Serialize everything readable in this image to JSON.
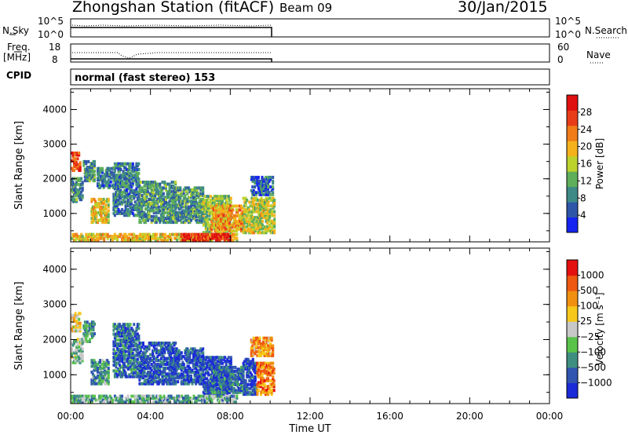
{
  "header": {
    "station": "Zhongshan Station (fitACF)",
    "beam": "Beam 09",
    "date": "30/Jan/2015"
  },
  "sky_panel": {
    "left_label": "N.Sky",
    "right_label": "N.Search",
    "left_ticks": [
      "10^5",
      "10^0"
    ],
    "right_ticks": [
      "10^5",
      "10^0"
    ]
  },
  "freq_panel": {
    "left_label_1": "Freq.",
    "left_label_2": "[MHz]",
    "right_label": "Nave",
    "left_ticks": [
      "18",
      "8"
    ],
    "right_ticks": [
      "60",
      "0"
    ]
  },
  "cpid": {
    "label": "CPID",
    "value": "normal (fast stereo) 153"
  },
  "chart_data": [
    {
      "type": "heatmap",
      "title": "",
      "ylabel": "Slant Range [km]",
      "yticks": [
        "4000",
        "3000",
        "2000",
        "1000"
      ],
      "ylim": [
        180,
        4600
      ],
      "xlim": [
        0,
        24
      ],
      "colorbar": {
        "label": "Power [dB]",
        "ticks": [
          "28",
          "24",
          "20",
          "16",
          "12",
          "8",
          "4"
        ],
        "range": [
          0,
          30
        ],
        "colors": [
          "#1524f0",
          "#2e56a8",
          "#3e8a86",
          "#5fae5a",
          "#bcd22d",
          "#f4b21a",
          "#f07d18",
          "#e83c18",
          "#df1010"
        ]
      },
      "clusters": [
        {
          "t0": 0.0,
          "t1": 0.45,
          "r0": 2200,
          "r1": 2700,
          "level": 0.8
        },
        {
          "t0": 0.0,
          "t1": 0.6,
          "r0": 1300,
          "r1": 2000,
          "level": 0.3
        },
        {
          "t0": 0.6,
          "t1": 1.2,
          "r0": 1900,
          "r1": 2500,
          "level": 0.3
        },
        {
          "t0": 1.0,
          "t1": 1.9,
          "r0": 700,
          "r1": 1400,
          "level": 0.55
        },
        {
          "t0": 1.3,
          "t1": 2.1,
          "r0": 1700,
          "r1": 2300,
          "level": 0.25
        },
        {
          "t0": 2.1,
          "t1": 3.4,
          "r0": 900,
          "r1": 2400,
          "level": 0.25
        },
        {
          "t0": 3.4,
          "t1": 5.2,
          "r0": 700,
          "r1": 1900,
          "level": 0.3
        },
        {
          "t0": 5.2,
          "t1": 6.6,
          "r0": 700,
          "r1": 1700,
          "level": 0.3
        },
        {
          "t0": 6.6,
          "t1": 8.0,
          "r0": 400,
          "r1": 1500,
          "level": 0.45
        },
        {
          "t0": 7.0,
          "t1": 8.6,
          "r0": 450,
          "r1": 1200,
          "level": 0.65
        },
        {
          "t0": 8.6,
          "t1": 10.2,
          "r0": 400,
          "r1": 1400,
          "level": 0.5
        },
        {
          "t0": 9.0,
          "t1": 10.1,
          "r0": 1500,
          "r1": 2000,
          "level": 0.2
        },
        {
          "t0": 0.0,
          "t1": 8.3,
          "r0": 180,
          "r1": 400,
          "level": 0.6
        },
        {
          "t0": 5.5,
          "t1": 8.0,
          "r0": 180,
          "r1": 350,
          "level": 0.9
        }
      ]
    },
    {
      "type": "heatmap",
      "title": "",
      "ylabel": "Slant Range [km]",
      "yticks": [
        "4000",
        "3000",
        "2000",
        "1000"
      ],
      "ylim": [
        180,
        4600
      ],
      "xlim": [
        0,
        24
      ],
      "xticks": [
        "00:00",
        "04:00",
        "08:00",
        "12:00",
        "16:00",
        "20:00",
        "00:00"
      ],
      "xlabel": "Time UT",
      "colorbar": {
        "label": "Velocity [m s⁻¹]",
        "ticks": [
          "1000",
          "500",
          "100",
          "25",
          "−25",
          "−100",
          "−500",
          "−1000"
        ],
        "range": [
          -1200,
          1200
        ],
        "colors": [
          "#1a2ad8",
          "#2f55b0",
          "#3f8f80",
          "#59c24a",
          "#c8c8c8",
          "#f6c81a",
          "#f09010",
          "#ee5810",
          "#e41010"
        ]
      },
      "clusters": [
        {
          "t0": 0.0,
          "t1": 0.45,
          "r0": 2200,
          "r1": 2700,
          "level": 0.6
        },
        {
          "t0": 0.0,
          "t1": 0.6,
          "r0": 1300,
          "r1": 2000,
          "level": 0.4
        },
        {
          "t0": 0.6,
          "t1": 1.2,
          "r0": 1900,
          "r1": 2500,
          "level": 0.3
        },
        {
          "t0": 1.0,
          "t1": 1.9,
          "r0": 700,
          "r1": 1400,
          "level": 0.3
        },
        {
          "t0": 2.1,
          "t1": 3.4,
          "r0": 900,
          "r1": 2400,
          "level": 0.2
        },
        {
          "t0": 3.4,
          "t1": 5.2,
          "r0": 700,
          "r1": 1900,
          "level": 0.15
        },
        {
          "t0": 5.2,
          "t1": 6.6,
          "r0": 700,
          "r1": 1700,
          "level": 0.15
        },
        {
          "t0": 6.6,
          "t1": 8.0,
          "r0": 400,
          "r1": 1500,
          "level": 0.1
        },
        {
          "t0": 7.0,
          "t1": 8.6,
          "r0": 450,
          "r1": 1200,
          "level": 0.2
        },
        {
          "t0": 8.6,
          "t1": 9.3,
          "r0": 400,
          "r1": 1400,
          "level": 0.15
        },
        {
          "t0": 9.3,
          "t1": 10.2,
          "r0": 400,
          "r1": 1300,
          "level": 0.75
        },
        {
          "t0": 9.0,
          "t1": 10.1,
          "r0": 1500,
          "r1": 2000,
          "level": 0.7
        },
        {
          "t0": 0.0,
          "t1": 8.3,
          "r0": 180,
          "r1": 400,
          "level": 0.35
        }
      ]
    }
  ]
}
